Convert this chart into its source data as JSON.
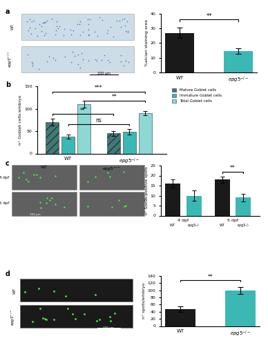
{
  "panel_a": {
    "categories": [
      "WT",
      "epg5-/-"
    ],
    "values": [
      27.0,
      14.5
    ],
    "errors": [
      3.5,
      2.0
    ],
    "bar_colors": [
      "#1a1a1a",
      "#3bb8b4"
    ],
    "ylabel": "%alcian staining area",
    "ylim": [
      0,
      40
    ],
    "yticks": [
      0,
      10,
      20,
      30,
      40
    ],
    "sig_label": "**"
  },
  "panel_b": {
    "categories": [
      "Mature Goblet cells",
      "Immature Goblet cells",
      "Total Goblet cells"
    ],
    "values_wt": [
      70.0,
      38.0,
      110.0
    ],
    "values_ep": [
      45.0,
      48.0,
      90.0
    ],
    "errors_wt": [
      7.0,
      5.0,
      8.0
    ],
    "errors_ep": [
      5.0,
      6.0,
      5.0
    ],
    "bar_colors": [
      "#3d7a78",
      "#3bb8b4",
      "#8dd8d5"
    ],
    "ylabel": "n° Goblet cells:embryo",
    "ylim": [
      0,
      150
    ],
    "yticks": [
      0,
      50,
      100,
      150
    ],
    "sig_labels": [
      "**",
      "ns",
      "***",
      "**"
    ]
  },
  "panel_c": {
    "values": [
      16.0,
      10.0,
      18.0,
      9.0
    ],
    "errors": [
      2.0,
      2.5,
      1.5,
      2.0
    ],
    "bar_colors": [
      "#1a1a1a",
      "#3bb8b4",
      "#1a1a1a",
      "#3bb8b4"
    ],
    "ylabel": "n° Sox9b-positive spots",
    "ylim": [
      0,
      25
    ],
    "yticks": [
      0,
      5,
      10,
      15,
      20,
      25
    ],
    "sig_label": "**",
    "x_group_labels": [
      "4 dpf",
      "5 dpf"
    ],
    "x_bar_labels": [
      "WT",
      "epg5-/-",
      "WT",
      "epg5-/-"
    ]
  },
  "panel_d": {
    "categories": [
      "WT",
      "epg5-/-"
    ],
    "values": [
      48.0,
      100.0
    ],
    "errors": [
      8.0,
      10.0
    ],
    "bar_colors": [
      "#1a1a1a",
      "#3bb8b4"
    ],
    "ylabel": "n° spots/embryo",
    "ylim": [
      0,
      140
    ],
    "yticks": [
      0,
      20,
      40,
      60,
      80,
      100,
      120,
      140
    ],
    "sig_label": "**"
  },
  "img_color_a": "#d8e8f0",
  "img_color_c": "#707070",
  "img_color_d": "#202020",
  "background_color": "#ffffff",
  "teal_color": "#3bb8b4"
}
